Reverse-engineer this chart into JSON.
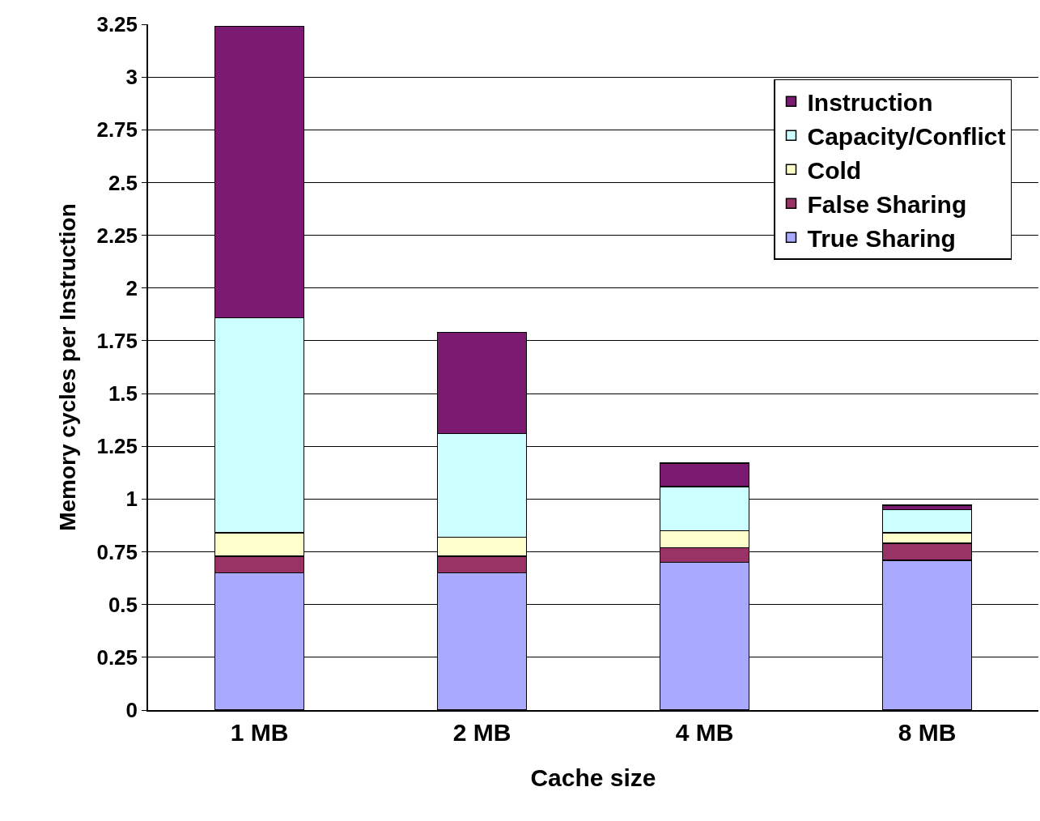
{
  "chart_data": {
    "type": "bar",
    "stacked": true,
    "xlabel": "Cache size",
    "ylabel": "Memory cycles per Instruction",
    "categories": [
      "1 MB",
      "2 MB",
      "4 MB",
      "8 MB"
    ],
    "series": [
      {
        "name": "True Sharing",
        "color": "#a9a9ff",
        "values": [
          0.65,
          0.65,
          0.7,
          0.71
        ]
      },
      {
        "name": "False Sharing",
        "color": "#993366",
        "values": [
          0.08,
          0.08,
          0.07,
          0.08
        ]
      },
      {
        "name": "Cold",
        "color": "#ffffcc",
        "values": [
          0.11,
          0.09,
          0.08,
          0.05
        ]
      },
      {
        "name": "Capacity/Conflict",
        "color": "#ccffff",
        "values": [
          1.02,
          0.49,
          0.21,
          0.11
        ]
      },
      {
        "name": "Instruction",
        "color": "#7b1a70",
        "values": [
          1.38,
          0.48,
          0.11,
          0.02
        ]
      }
    ],
    "ylim": [
      0,
      3.25
    ],
    "yticks": [
      0,
      0.25,
      0.5,
      0.75,
      1,
      1.25,
      1.5,
      1.75,
      2,
      2.25,
      2.5,
      2.75,
      3,
      3.25
    ],
    "grid": "y",
    "legend": "top right"
  }
}
